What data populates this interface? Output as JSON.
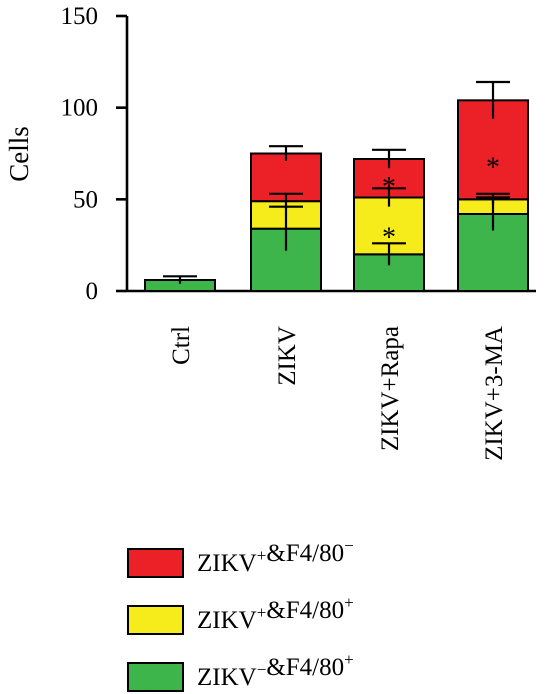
{
  "chart_data": {
    "type": "bar",
    "stacked": true,
    "title": "",
    "xlabel": "",
    "ylabel": "Cells",
    "ylim": [
      0,
      150
    ],
    "yticks": [
      0,
      50,
      100,
      150
    ],
    "grid": false,
    "legend_position": "bottom",
    "categories": [
      "Ctrl",
      "ZIKV",
      "ZIKV+Rapa",
      "ZIKV+3-MA"
    ],
    "series": [
      {
        "key": "neg_pos",
        "label_main": "ZIKV",
        "label_sup1": "−",
        "label_mid": "&F4/80",
        "label_sup2": "+",
        "color": "#3db54a",
        "values": [
          6,
          34,
          20,
          42
        ],
        "errors": [
          2,
          12,
          6,
          9
        ]
      },
      {
        "key": "pos_pos",
        "label_main": "ZIKV",
        "label_sup1": "+",
        "label_mid": "&F4/80",
        "label_sup2": "+",
        "color": "#f7ec1b",
        "values": [
          0,
          15,
          31,
          8
        ],
        "errors": [
          0,
          4,
          5,
          3
        ]
      },
      {
        "key": "pos_neg",
        "label_main": "ZIKV",
        "label_sup1": "+",
        "label_mid": "&F4/80",
        "label_sup2": "−",
        "color": "#ec2127",
        "values": [
          0,
          26,
          21,
          54
        ],
        "errors": [
          0,
          4,
          5,
          10
        ]
      }
    ],
    "annotations": [
      {
        "category": "ZIKV+Rapa",
        "series": "pos_pos",
        "text": "*"
      },
      {
        "category": "ZIKV+Rapa",
        "series": "pos_neg",
        "text": "*"
      },
      {
        "category": "ZIKV+3-MA",
        "series": "pos_neg",
        "text": "*"
      }
    ]
  }
}
